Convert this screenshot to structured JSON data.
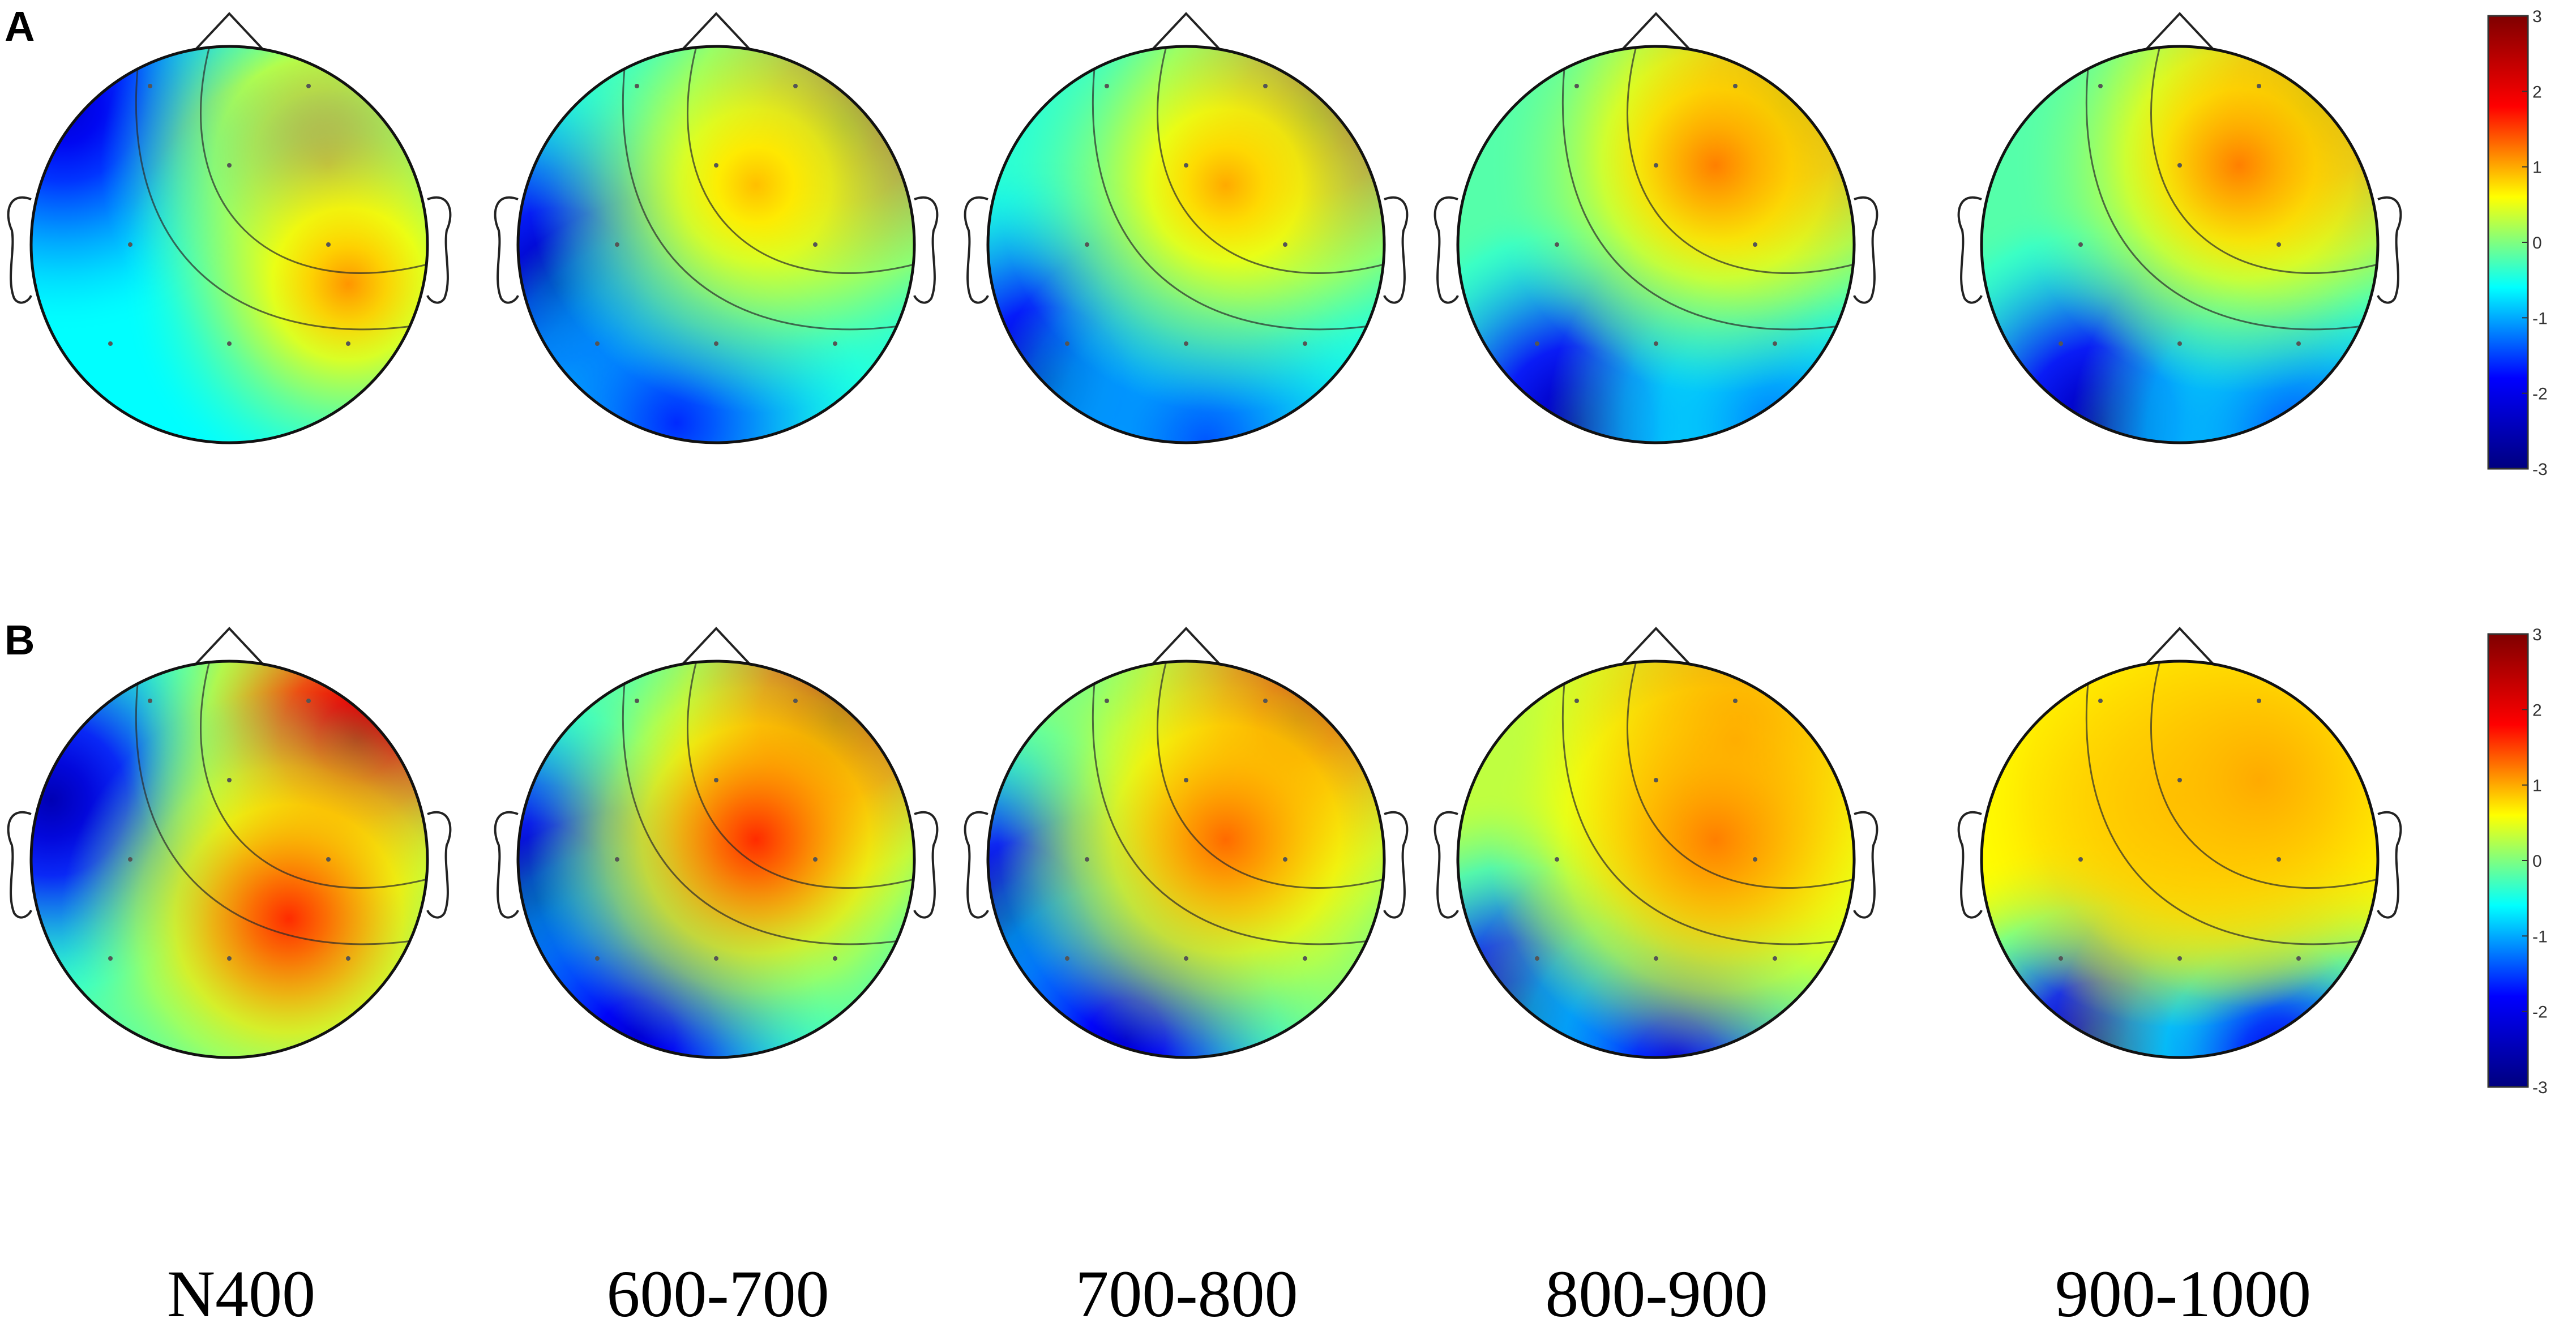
{
  "rows": [
    {
      "label": "A",
      "maps": [
        "a1",
        "a2",
        "a3",
        "a4",
        "a5"
      ]
    },
    {
      "label": "B",
      "maps": [
        "b1",
        "b2",
        "b3",
        "b4",
        "b5"
      ]
    }
  ],
  "time_windows": [
    "N400",
    "600-700",
    "700-800",
    "800-900",
    "900-1000"
  ],
  "colorbar": {
    "ticks": [
      "3",
      "2",
      "1",
      "0",
      "-1",
      "-2",
      "-3"
    ],
    "values": [
      3,
      2,
      1,
      0,
      -1,
      -2,
      -3
    ],
    "colormap": "jet",
    "colors": [
      "#00007f",
      "#0000ff",
      "#00ffff",
      "#ffff00",
      "#ff0000",
      "#7f0000"
    ]
  },
  "scalp_maps": [
    {
      "row": "A",
      "window": "N400",
      "hot": [
        [
          0.75,
          0.3,
          1.6
        ],
        [
          0.8,
          0.6,
          1.1
        ]
      ],
      "cold": [
        [
          0.08,
          0.15,
          -2.2
        ]
      ],
      "base": -0.6
    },
    {
      "row": "A",
      "window": "600-700",
      "hot": [
        [
          0.82,
          0.2,
          2.6
        ],
        [
          0.6,
          0.35,
          0.9
        ]
      ],
      "cold": [
        [
          0.1,
          0.6,
          -2.6
        ],
        [
          0.4,
          0.95,
          -1.6
        ]
      ],
      "base": -0.4
    },
    {
      "row": "A",
      "window": "700-800",
      "hot": [
        [
          0.82,
          0.18,
          2.6
        ],
        [
          0.6,
          0.35,
          1.0
        ]
      ],
      "cold": [
        [
          0.15,
          0.85,
          -2.5
        ],
        [
          0.55,
          1.0,
          -1.4
        ]
      ],
      "base": -0.4
    },
    {
      "row": "A",
      "window": "800-900",
      "hot": [
        [
          0.82,
          0.15,
          2.6
        ],
        [
          0.65,
          0.3,
          1.2
        ]
      ],
      "cold": [
        [
          0.3,
          0.95,
          -2.6
        ],
        [
          0.8,
          0.95,
          -1.2
        ]
      ],
      "base": -0.2
    },
    {
      "row": "A",
      "window": "900-1000",
      "hot": [
        [
          0.82,
          0.15,
          2.6
        ],
        [
          0.65,
          0.3,
          1.2
        ]
      ],
      "cold": [
        [
          0.3,
          0.95,
          -2.6
        ],
        [
          0.8,
          0.98,
          -1.4
        ]
      ],
      "base": -0.2
    },
    {
      "row": "B",
      "window": "N400",
      "hot": [
        [
          0.82,
          0.2,
          2.4
        ],
        [
          0.65,
          0.65,
          1.6
        ]
      ],
      "cold": [
        [
          0.05,
          0.35,
          -2.5
        ]
      ],
      "base": -0.2
    },
    {
      "row": "B",
      "window": "600-700",
      "hot": [
        [
          0.8,
          0.15,
          2.6
        ],
        [
          0.6,
          0.45,
          1.6
        ]
      ],
      "cold": [
        [
          0.05,
          0.6,
          -2.8
        ],
        [
          0.3,
          0.95,
          -2.2
        ]
      ],
      "base": -0.2
    },
    {
      "row": "B",
      "window": "700-800",
      "hot": [
        [
          0.78,
          0.15,
          2.3
        ],
        [
          0.6,
          0.45,
          1.3
        ]
      ],
      "cold": [
        [
          0.05,
          0.65,
          -2.6
        ],
        [
          0.35,
          0.95,
          -2.2
        ]
      ],
      "base": 0.0
    },
    {
      "row": "B",
      "window": "800-900",
      "hot": [
        [
          0.7,
          0.2,
          1.7
        ],
        [
          0.65,
          0.45,
          1.2
        ]
      ],
      "cold": [
        [
          0.15,
          0.9,
          -2.6
        ],
        [
          0.55,
          1.0,
          -2.0
        ]
      ],
      "base": 0.3
    },
    {
      "row": "B",
      "window": "900-1000",
      "hot": [
        [
          0.5,
          0.35,
          1.2
        ],
        [
          0.7,
          0.3,
          1.0
        ]
      ],
      "cold": [
        [
          0.3,
          1.0,
          -2.8
        ],
        [
          0.75,
          1.0,
          -2.0
        ]
      ],
      "base": 0.6
    }
  ]
}
